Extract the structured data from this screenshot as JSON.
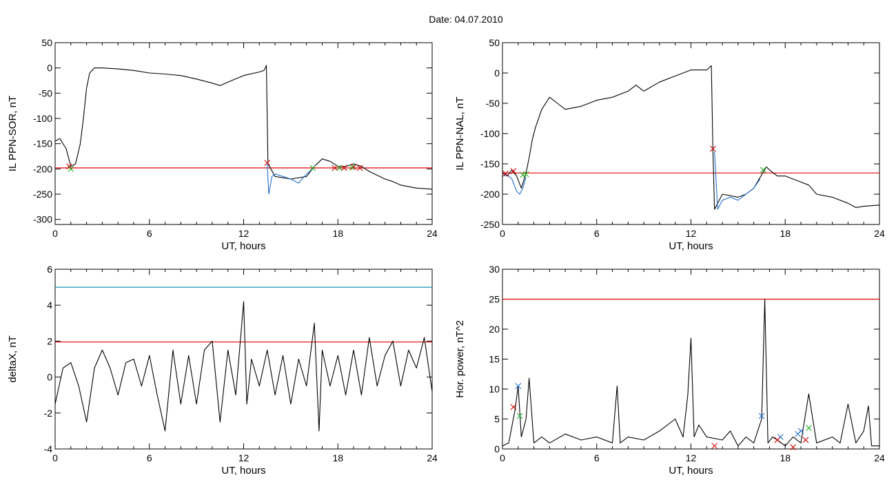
{
  "date_label": "Date:  04.07.2010",
  "chart_data": [
    {
      "type": "line",
      "xlabel": "UT, hours",
      "ylabel": "IL PPN-SOR, nT",
      "xlim": [
        0,
        24
      ],
      "ylim": [
        -310,
        50
      ],
      "xticks": [
        0,
        6,
        12,
        18,
        24
      ],
      "yticks": [
        50,
        0,
        -50,
        -100,
        -150,
        -200,
        -250,
        -300
      ],
      "grid": false,
      "hlines": [
        {
          "y": -198,
          "color": "#e00000"
        }
      ],
      "series": [
        {
          "color": "#000000",
          "x": [
            0,
            0.3,
            0.7,
            1.0,
            1.3,
            1.6,
            1.8,
            2.0,
            2.2,
            2.5,
            3.0,
            4.0,
            5.0,
            6.0,
            7.0,
            8.0,
            9.0,
            10.0,
            10.5,
            11.0,
            12.0,
            13.0,
            13.3,
            13.45,
            13.55,
            14.0,
            15.0,
            16.0,
            16.5,
            17.0,
            17.5,
            18.0,
            18.5,
            19.0,
            19.5,
            20.0,
            21.0,
            21.5,
            22.0,
            23.0,
            24.0
          ],
          "y": [
            -145,
            -140,
            -160,
            -195,
            -190,
            -150,
            -100,
            -40,
            -10,
            0,
            0,
            -2,
            -5,
            -10,
            -12,
            -15,
            -22,
            -30,
            -35,
            -28,
            -15,
            -8,
            -5,
            5,
            -190,
            -215,
            -220,
            -215,
            -195,
            -180,
            -185,
            -195,
            -195,
            -190,
            -195,
            -205,
            -220,
            -225,
            -232,
            -238,
            -240
          ]
        },
        {
          "color": "#1f6fd0",
          "x": [
            13.5,
            13.6,
            13.8,
            14.0,
            14.5,
            15.0,
            15.5,
            16.0,
            16.4
          ],
          "y": [
            -190,
            -250,
            -215,
            -210,
            -215,
            -220,
            -228,
            -210,
            -200
          ]
        }
      ],
      "markers": [
        {
          "color": "#d00000",
          "x": [
            0.9,
            13.5,
            17.8,
            18.4,
            19.0,
            19.4
          ],
          "y": [
            -195,
            -188,
            -198,
            -198,
            -196,
            -198
          ]
        },
        {
          "color": "#20b020",
          "x": [
            1.0,
            16.4,
            18.1,
            18.9
          ],
          "y": [
            -200,
            -198,
            -198,
            -197
          ]
        }
      ]
    },
    {
      "type": "line",
      "xlabel": "UT, hours",
      "ylabel": "IL PPN-NAL, nT",
      "xlim": [
        0,
        24
      ],
      "ylim": [
        -250,
        50
      ],
      "xticks": [
        0,
        6,
        12,
        18,
        24
      ],
      "yticks": [
        50,
        0,
        -50,
        -100,
        -150,
        -200,
        -250
      ],
      "grid": false,
      "hlines": [
        {
          "y": -165,
          "color": "#e00000"
        }
      ],
      "series": [
        {
          "color": "#000000",
          "x": [
            0,
            0.3,
            0.6,
            0.9,
            1.2,
            1.5,
            1.7,
            1.9,
            2.1,
            2.5,
            3.0,
            3.5,
            4.0,
            5.0,
            6.0,
            7.0,
            8.0,
            8.5,
            9.0,
            10.0,
            11.0,
            12.0,
            13.0,
            13.3,
            13.4,
            13.5,
            14.0,
            15.0,
            15.5,
            16.0,
            16.5,
            16.8,
            17.0,
            17.5,
            18.0,
            18.5,
            19.0,
            19.5,
            20.0,
            21.0,
            22.0,
            22.5,
            23.0,
            24.0
          ],
          "y": [
            -165,
            -170,
            -160,
            -170,
            -190,
            -165,
            -140,
            -110,
            -90,
            -60,
            -40,
            -50,
            -60,
            -55,
            -45,
            -40,
            -30,
            -20,
            -30,
            -15,
            -5,
            5,
            5,
            12,
            -130,
            -225,
            -200,
            -205,
            -200,
            -190,
            -168,
            -155,
            -160,
            -170,
            -170,
            -175,
            -180,
            -185,
            -200,
            -205,
            -215,
            -222,
            -220,
            -218
          ]
        },
        {
          "color": "#1f6fd0",
          "x": [
            0.1,
            0.3,
            0.6,
            0.9,
            1.1,
            1.3,
            1.5
          ],
          "y": [
            -170,
            -168,
            -175,
            -195,
            -200,
            -190,
            -172
          ]
        },
        {
          "color": "#1f6fd0",
          "x": [
            13.5,
            13.7,
            14.0,
            14.5,
            15.0,
            15.5,
            16.0,
            16.4
          ],
          "y": [
            -130,
            -225,
            -210,
            -205,
            -210,
            -200,
            -190,
            -175
          ]
        }
      ],
      "markers": [
        {
          "color": "#d00000",
          "x": [
            0.2,
            0.7,
            13.4
          ],
          "y": [
            -166,
            -162,
            -125
          ]
        },
        {
          "color": "#20b020",
          "x": [
            1.3,
            1.5,
            16.6
          ],
          "y": [
            -168,
            -167,
            -160
          ]
        }
      ]
    },
    {
      "type": "line",
      "xlabel": "UT, hours",
      "ylabel": "deltaX, nT",
      "xlim": [
        0,
        24
      ],
      "ylim": [
        -4,
        6
      ],
      "xticks": [
        0,
        6,
        12,
        18,
        24
      ],
      "yticks": [
        6,
        4,
        2,
        0,
        -2,
        -4
      ],
      "grid": false,
      "hlines": [
        {
          "y": 5.0,
          "color": "#1f8fb0"
        },
        {
          "y": 1.95,
          "color": "#e00000"
        }
      ],
      "series": [
        {
          "color": "#000000",
          "x": [
            0,
            0.5,
            1.0,
            1.5,
            2.0,
            2.5,
            3.0,
            3.5,
            4.0,
            4.5,
            5.0,
            5.5,
            6.0,
            6.5,
            7.0,
            7.5,
            8.0,
            8.5,
            9.0,
            9.5,
            10.0,
            10.5,
            11.0,
            11.5,
            12.0,
            12.2,
            12.5,
            13.0,
            13.5,
            14.0,
            14.5,
            15.0,
            15.5,
            16.0,
            16.5,
            16.8,
            17.0,
            17.5,
            18.0,
            18.5,
            19.0,
            19.5,
            20.0,
            20.5,
            21.0,
            21.5,
            22.0,
            22.5,
            23.0,
            23.5,
            24.0
          ],
          "y": [
            -1.5,
            0.5,
            0.8,
            -0.5,
            -2.5,
            0.5,
            1.5,
            0.5,
            -1.0,
            0.8,
            1.0,
            -0.5,
            1.2,
            -1.0,
            -3.0,
            1.5,
            -1.5,
            1.2,
            -1.5,
            1.5,
            2.0,
            -2.5,
            1.5,
            -1.0,
            4.2,
            -1.5,
            1.0,
            -0.5,
            1.5,
            -1.0,
            1.2,
            -1.5,
            1.0,
            -0.5,
            3.0,
            -3.0,
            1.5,
            -0.5,
            1.2,
            -1.0,
            1.5,
            -1.0,
            2.2,
            -0.5,
            1.2,
            2.0,
            -0.5,
            1.5,
            0.5,
            2.2,
            -0.8
          ]
        }
      ],
      "markers": []
    },
    {
      "type": "line",
      "xlabel": "UT, hours",
      "ylabel": "Hor. power, nT^2",
      "xlim": [
        0,
        24
      ],
      "ylim": [
        0,
        30
      ],
      "xticks": [
        0,
        6,
        12,
        18,
        24
      ],
      "yticks": [
        30,
        25,
        20,
        15,
        10,
        5,
        0
      ],
      "grid": false,
      "hlines": [
        {
          "y": 25,
          "color": "#e00000"
        }
      ],
      "series": [
        {
          "color": "#000000",
          "x": [
            0,
            0.4,
            0.8,
            1.0,
            1.2,
            1.5,
            1.7,
            2.0,
            2.5,
            3.0,
            4.0,
            5.0,
            6.0,
            7.0,
            7.3,
            7.5,
            8.0,
            9.0,
            10.0,
            11.0,
            11.5,
            11.8,
            12.0,
            12.2,
            12.5,
            13.0,
            14.0,
            14.5,
            15.0,
            15.5,
            16.0,
            16.5,
            16.7,
            16.9,
            17.2,
            17.5,
            18.0,
            18.5,
            19.0,
            19.5,
            20.0,
            21.0,
            21.5,
            22.0,
            22.5,
            23.0,
            23.3,
            23.5,
            24.0
          ],
          "y": [
            0.5,
            1.0,
            6.5,
            10.5,
            2.0,
            5.0,
            11.8,
            1.0,
            2.0,
            1.0,
            2.5,
            1.5,
            2.0,
            1.0,
            10.5,
            1.0,
            2.0,
            1.5,
            3.0,
            5.0,
            2.0,
            9.0,
            18.5,
            2.0,
            4.0,
            2.0,
            1.5,
            3.0,
            0.5,
            2.0,
            1.0,
            5.0,
            25.0,
            1.0,
            2.0,
            1.5,
            0.5,
            2.0,
            1.0,
            9.2,
            1.0,
            2.0,
            1.0,
            7.5,
            1.0,
            3.0,
            7.2,
            0.5,
            0.5
          ]
        }
      ],
      "markers": [
        {
          "color": "#1f6fd0",
          "x": [
            1.0,
            16.5,
            17.7,
            18.8,
            19.0
          ],
          "y": [
            10.5,
            5.5,
            2.0,
            2.5,
            3.0
          ]
        },
        {
          "color": "#d00000",
          "x": [
            0.7,
            13.5,
            17.5,
            18.5,
            19.3
          ],
          "y": [
            7.0,
            0.5,
            1.5,
            0.3,
            1.5
          ]
        },
        {
          "color": "#20b020",
          "x": [
            1.1,
            19.5
          ],
          "y": [
            5.5,
            3.5
          ]
        }
      ]
    }
  ]
}
